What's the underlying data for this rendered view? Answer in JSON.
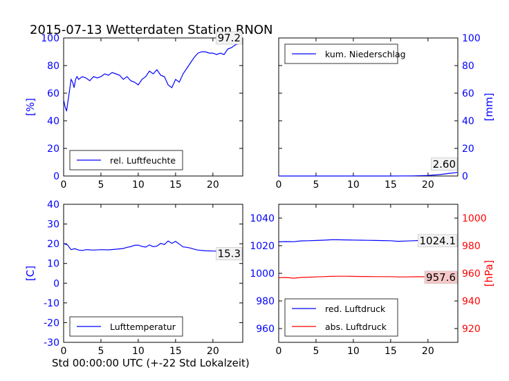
{
  "figure": {
    "title": "2015-07-13 Wetterdaten Station RNON",
    "xlabel": "Std 00:00:00 UTC (+-22 Std Lokalzeit)"
  },
  "colors": {
    "blue": "#0000ff",
    "red": "#ff0000",
    "black": "#000000"
  },
  "chart_data": [
    {
      "type": "line",
      "id": "humidity",
      "ylabel": "[%]",
      "ylabel_side": "left",
      "ylabel_color": "#0000ff",
      "tick_color": "#0000ff",
      "xlim": [
        0,
        24
      ],
      "ylim": [
        0,
        100
      ],
      "xticks": [
        0,
        5,
        10,
        15,
        20
      ],
      "yticks": [
        0,
        20,
        40,
        60,
        80,
        100
      ],
      "legend": {
        "placement": "lower-left",
        "entries": [
          {
            "label": "rel. Luftfeuchte",
            "color": "#0000ff"
          }
        ]
      },
      "annotation": {
        "text": "97.2",
        "placement": "top-right"
      },
      "series": [
        {
          "name": "rel. Luftfeuchte",
          "color": "#0000ff",
          "x": [
            0,
            0.2,
            0.4,
            0.6,
            0.8,
            1.0,
            1.2,
            1.4,
            1.6,
            1.8,
            2.0,
            2.5,
            3.0,
            3.5,
            4.0,
            4.5,
            5.0,
            5.5,
            6.0,
            6.5,
            7.0,
            7.5,
            8.0,
            8.5,
            9.0,
            9.5,
            10.0,
            10.5,
            11.0,
            11.5,
            12.0,
            12.5,
            13.0,
            13.5,
            14.0,
            14.5,
            15.0,
            15.5,
            16.0,
            16.5,
            17.0,
            17.5,
            18.0,
            18.5,
            19.0,
            19.5,
            20.0,
            20.5,
            21.0,
            21.5,
            22.0,
            22.5,
            23.0,
            23.5,
            24.0
          ],
          "y": [
            55,
            50,
            47,
            55,
            62,
            70,
            68,
            64,
            70,
            72,
            70,
            72,
            71,
            69,
            72,
            71,
            72,
            74,
            73,
            75,
            74,
            73,
            70,
            72,
            69,
            68,
            66,
            70,
            72,
            76,
            74,
            77,
            73,
            72,
            66,
            64,
            70,
            68,
            74,
            78,
            82,
            86,
            89,
            90,
            90,
            89,
            89,
            88,
            89,
            88,
            92,
            93,
            95,
            96,
            97.2
          ]
        }
      ]
    },
    {
      "type": "line",
      "id": "precipitation",
      "ylabel": "[mm]",
      "ylabel_side": "right",
      "ylabel_color": "#0000ff",
      "tick_color": "#0000ff",
      "xlim": [
        0,
        24
      ],
      "ylim": [
        0,
        100
      ],
      "xticks": [
        0,
        5,
        10,
        15,
        20
      ],
      "yticks": [
        0,
        20,
        40,
        60,
        80,
        100
      ],
      "legend": {
        "placement": "upper-left",
        "entries": [
          {
            "label": "kum. Niederschlag",
            "color": "#0000ff"
          }
        ]
      },
      "annotation": {
        "text": "2.60",
        "placement": "bottom-right"
      },
      "series": [
        {
          "name": "kum. Niederschlag",
          "color": "#0000ff",
          "x": [
            0,
            5,
            10,
            15,
            18,
            20,
            21,
            22,
            23,
            24
          ],
          "y": [
            0,
            0,
            0,
            0,
            0.1,
            0.4,
            0.8,
            1.3,
            2.0,
            2.6
          ]
        }
      ]
    },
    {
      "type": "line",
      "id": "temperature",
      "ylabel": "[C]",
      "ylabel_side": "left",
      "ylabel_color": "#0000ff",
      "tick_color": "#0000ff",
      "xlim": [
        0,
        24
      ],
      "ylim": [
        -30,
        40
      ],
      "xticks": [
        0,
        5,
        10,
        15,
        20
      ],
      "yticks": [
        -30,
        -20,
        -10,
        0,
        10,
        20,
        30,
        40
      ],
      "legend": {
        "placement": "lower-left",
        "entries": [
          {
            "label": "Lufttemperatur",
            "color": "#0000ff"
          }
        ]
      },
      "annotation": {
        "text": "15.3",
        "placement": "right"
      },
      "series": [
        {
          "name": "Lufttemperatur",
          "color": "#0000ff",
          "x": [
            0,
            0.5,
            1.0,
            1.5,
            2.0,
            2.5,
            3.0,
            4.0,
            5.0,
            6.0,
            7.0,
            8.0,
            8.5,
            9.0,
            9.5,
            10.0,
            10.5,
            11.0,
            11.5,
            12.0,
            12.5,
            13.0,
            13.5,
            14.0,
            14.5,
            15.0,
            15.5,
            16.0,
            16.5,
            17.0,
            17.5,
            18.0,
            19.0,
            20.0,
            21.0,
            22.0,
            23.0,
            24.0
          ],
          "y": [
            20,
            19.5,
            17,
            17.5,
            16.8,
            16.6,
            17,
            16.8,
            17,
            16.9,
            17.2,
            17.6,
            18.2,
            18.5,
            19.2,
            19.3,
            18.6,
            18.3,
            19.4,
            18.5,
            18.8,
            20.2,
            19.6,
            21.4,
            20.2,
            21.2,
            19.8,
            18.4,
            18.2,
            17.8,
            17.2,
            16.8,
            16.4,
            16.3,
            16.2,
            16.0,
            15.6,
            15.3
          ]
        }
      ]
    },
    {
      "type": "line",
      "id": "pressure",
      "ylabel": "[hPa]",
      "ylabel_side": "right",
      "ylabel_color": "#ff0000",
      "left_tick_color": "#0000ff",
      "right_tick_color": "#ff0000",
      "xlim": [
        0,
        24
      ],
      "ylim_left": [
        950,
        1050
      ],
      "yticks_left": [
        960,
        980,
        1000,
        1020,
        1040
      ],
      "ylim_right": [
        910,
        1010
      ],
      "yticks_right": [
        920,
        940,
        960,
        980,
        1000
      ],
      "xticks": [
        0,
        5,
        10,
        15,
        20
      ],
      "legend": {
        "placement": "lower-left",
        "entries": [
          {
            "label": "red. Luftdruck",
            "color": "#0000ff"
          },
          {
            "label": "abs. Luftdruck",
            "color": "#ff0000"
          }
        ]
      },
      "annotations": [
        {
          "text": "1024.1",
          "placement": "right"
        },
        {
          "text": "957.6",
          "placement": "right"
        }
      ],
      "series": [
        {
          "name": "red. Luftdruck",
          "color": "#0000ff",
          "axis": "left",
          "x": [
            0,
            1,
            2,
            3,
            4,
            5,
            6,
            7,
            8,
            9,
            10,
            11,
            12,
            13,
            14,
            15,
            16,
            17,
            18,
            19,
            20,
            21,
            22,
            23,
            24
          ],
          "y": [
            1022.8,
            1023.0,
            1022.9,
            1023.5,
            1023.6,
            1023.8,
            1024.0,
            1024.3,
            1024.3,
            1024.2,
            1024.1,
            1024.0,
            1023.9,
            1023.8,
            1023.7,
            1023.6,
            1023.2,
            1023.4,
            1023.6,
            1023.8,
            1023.9,
            1024.0,
            1024.1,
            1024.1,
            1024.1
          ]
        },
        {
          "name": "abs. Luftdruck",
          "color": "#ff0000",
          "axis": "right",
          "x": [
            0,
            1,
            2,
            3,
            4,
            5,
            6,
            7,
            8,
            9,
            10,
            11,
            12,
            13,
            14,
            15,
            16,
            17,
            18,
            19,
            20,
            21,
            22,
            23,
            24
          ],
          "y": [
            956.8,
            957.0,
            956.5,
            957.0,
            957.2,
            957.4,
            957.6,
            957.8,
            957.9,
            957.9,
            957.8,
            957.7,
            957.7,
            957.6,
            957.6,
            957.6,
            957.4,
            957.4,
            957.5,
            957.5,
            957.6,
            957.6,
            957.6,
            957.6,
            957.6
          ]
        }
      ]
    }
  ]
}
